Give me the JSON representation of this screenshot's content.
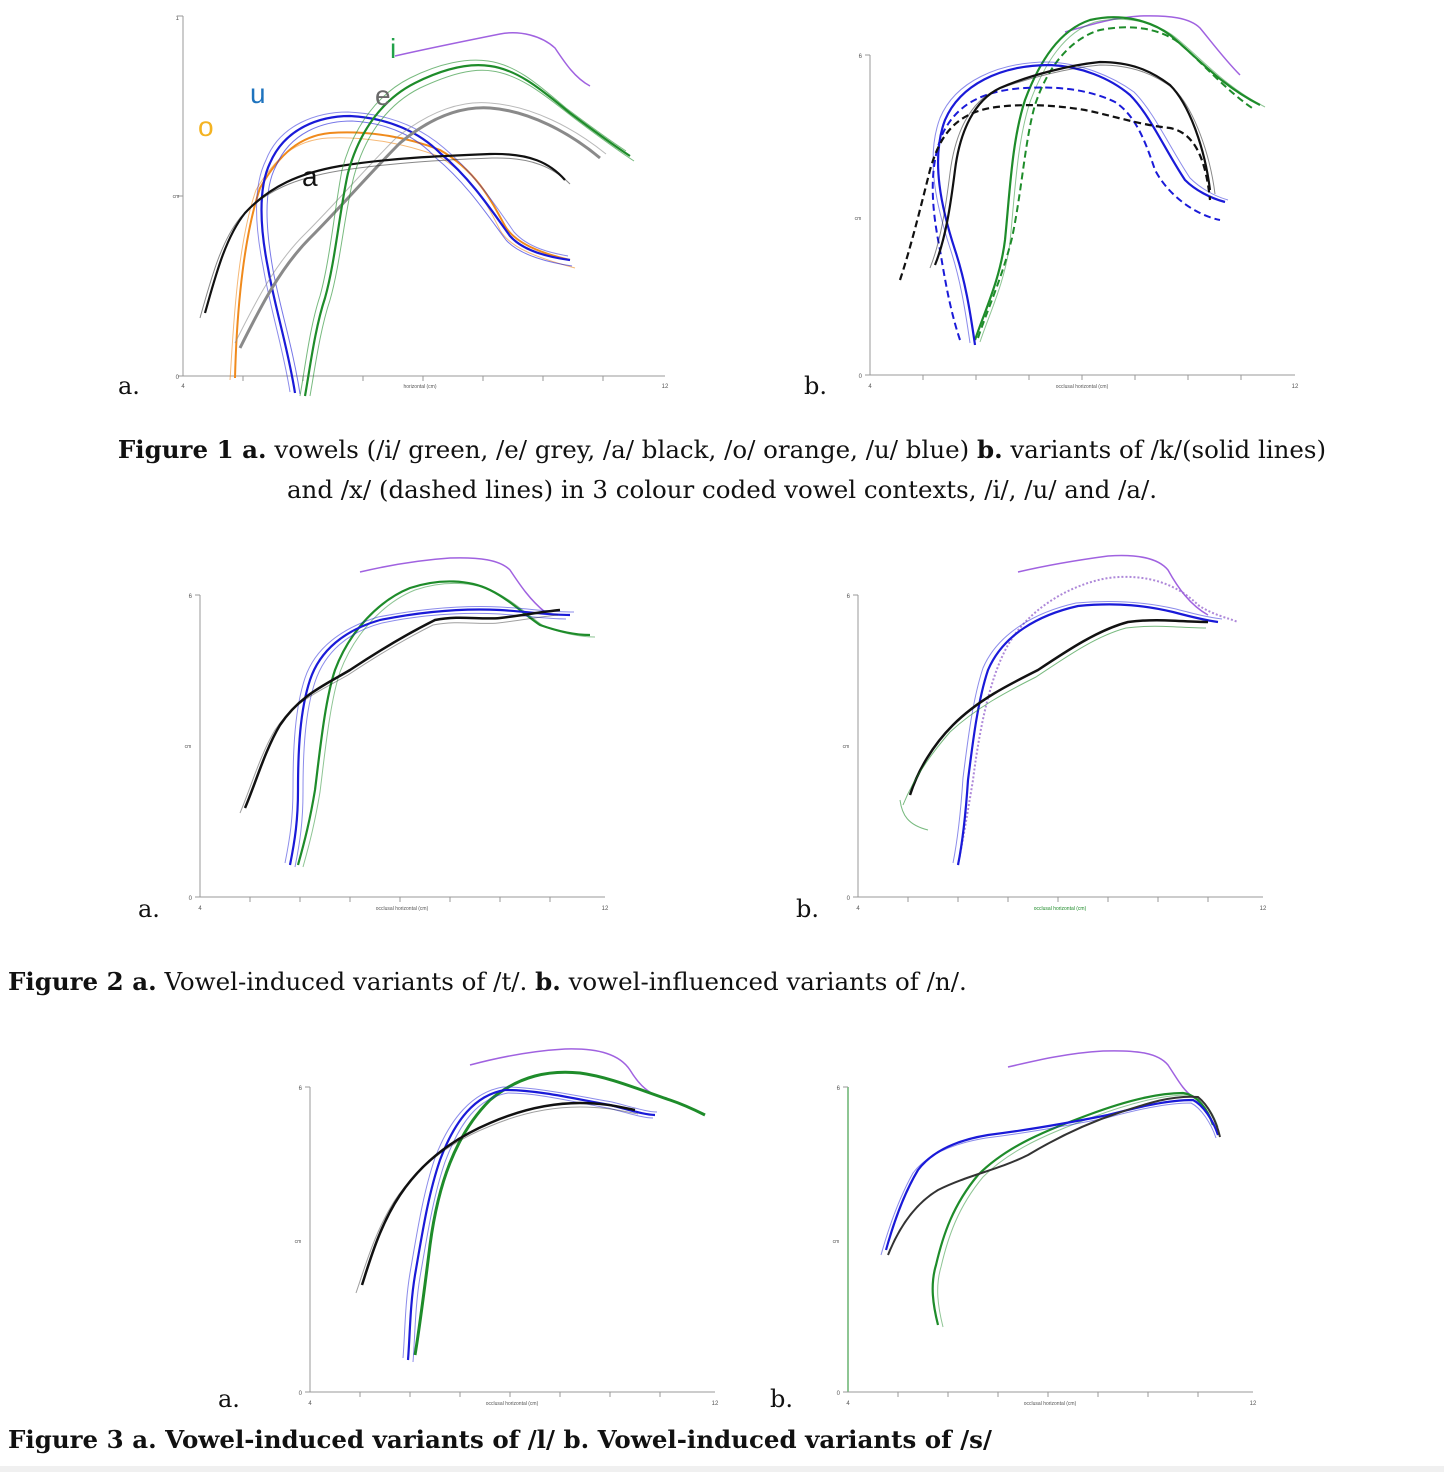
{
  "figure1": {
    "panel_a": {
      "letter": "a.",
      "xlabel": "horizontal (cm)",
      "ylabel": "cm",
      "x_ticks": [
        "4",
        "12"
      ],
      "y_ticks": [
        "1",
        "0"
      ],
      "vowel_labels": {
        "o": "o",
        "u": "u",
        "e": "e",
        "i": "i",
        "a": "a"
      }
    },
    "panel_b": {
      "letter": "b.",
      "xlabel": "occlusal horizontal (cm)",
      "ylabel": "cm",
      "x_ticks": [
        "4",
        "12"
      ],
      "y_ticks": [
        "6",
        "0"
      ]
    },
    "caption": {
      "label_a": "Figure 1 a.",
      "text_a": " vowels (/i/ green, /e/ grey, /a/ black, /o/ orange, /u/ blue) ",
      "label_b": "b.",
      "text_b": " variants of /k/(solid lines)",
      "line2": "and /x/ (dashed lines) in 3 colour coded vowel contexts, /i/, /u/ and /a/."
    }
  },
  "figure2": {
    "panel_a": {
      "letter": "a.",
      "xlabel": "occlusal horizontal (cm)",
      "ylabel": "cm",
      "x_ticks": [
        "4",
        "12"
      ],
      "y_ticks": [
        "6",
        "0"
      ]
    },
    "panel_b": {
      "letter": "b.",
      "xlabel": "occlusal horizontal (cm)",
      "ylabel": "cm",
      "x_ticks": [
        "4",
        "12"
      ],
      "y_ticks": [
        "6",
        "0"
      ]
    },
    "caption": {
      "label_a": "Figure 2 a.",
      "text_a": " Vowel-induced variants of /t/. ",
      "label_b": "b.",
      "text_b": " vowel-influenced variants of /n/."
    }
  },
  "figure3": {
    "panel_a": {
      "letter": "a.",
      "xlabel": "occlusal horizontal (cm)",
      "ylabel": "cm",
      "x_ticks": [
        "4",
        "12"
      ],
      "y_ticks": [
        "6",
        "0"
      ]
    },
    "panel_b": {
      "letter": "b.",
      "xlabel": "occlusal horizontal (cm)",
      "ylabel": "cm",
      "x_ticks": [
        "4",
        "12"
      ],
      "y_ticks": [
        "6",
        "0"
      ]
    },
    "caption": {
      "text": "Figure 3 a. Vowel-induced variants of /l/ b. Vowel-induced variants of /s/"
    }
  },
  "colors": {
    "green": "#1e8c2a",
    "grey": "#8a8a8a",
    "black": "#111111",
    "orange": "#f08a1c",
    "blue": "#1a1ad8",
    "purple": "#a062e0",
    "label_o": "#f4b321",
    "label_u": "#1e73be",
    "label_e": "#6a6a6a",
    "label_i": "#21a24a"
  }
}
